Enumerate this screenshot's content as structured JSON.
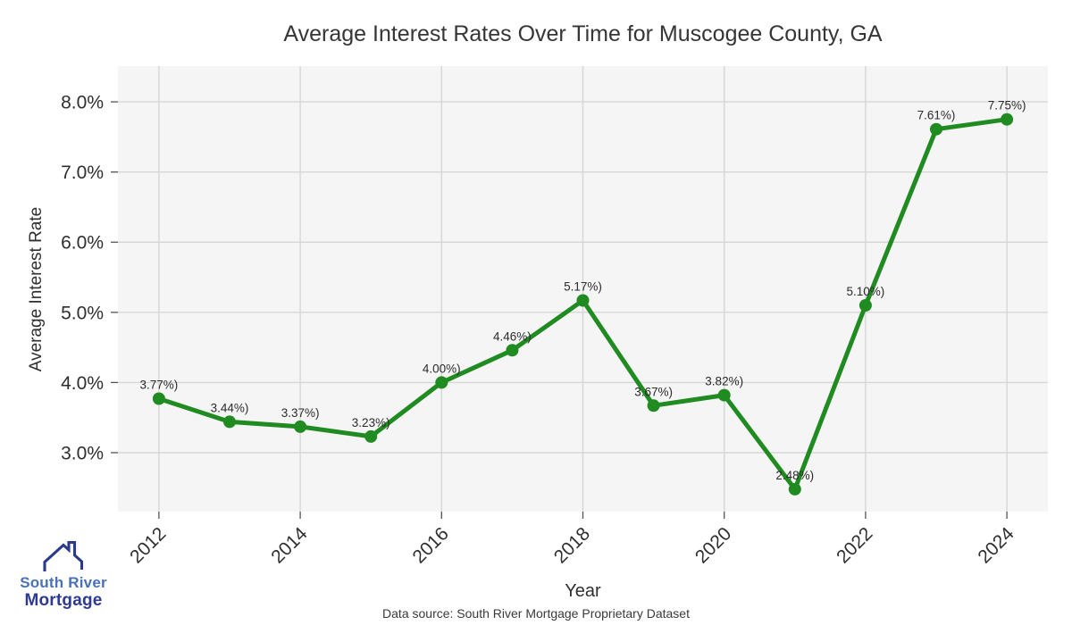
{
  "header": {
    "title": "Average Interest Rates Over Time for Muscogee County, GA"
  },
  "chart_data": {
    "type": "line",
    "title": "Average Interest Rates Over Time for Muscogee County, GA",
    "xlabel": "Year",
    "ylabel": "Average Interest Rate",
    "x": [
      2012,
      2013,
      2014,
      2015,
      2016,
      2017,
      2018,
      2019,
      2020,
      2021,
      2022,
      2023,
      2024
    ],
    "values": [
      3.77,
      3.44,
      3.37,
      3.23,
      4.0,
      4.46,
      5.17,
      3.67,
      3.82,
      2.48,
      5.1,
      7.61,
      7.75
    ],
    "point_labels": [
      "3.77%)",
      "3.44%)",
      "3.37%)",
      "3.23%)",
      "4.00%)",
      "4.46%)",
      "5.17%)",
      "3.67%)",
      "3.82%)",
      "2.48%)",
      "5.10%)",
      "7.61%)",
      "7.75%)"
    ],
    "x_ticks": [
      2012,
      2014,
      2016,
      2018,
      2020,
      2022,
      2024
    ],
    "y_ticks": [
      "3.0%",
      "4.0%",
      "5.0%",
      "6.0%",
      "7.0%",
      "8.0%"
    ],
    "y_tick_values": [
      3,
      4,
      5,
      6,
      7,
      8
    ],
    "xlim": [
      2011.42,
      2024.58
    ],
    "ylim": [
      2.16,
      8.51
    ],
    "grid": true,
    "legend": "none",
    "line_color": "#208b20",
    "marker_color": "#208b20",
    "plot_bg": "#f5f5f5",
    "grid_color": "#d6d6d6",
    "tick_color": "#2f2f2f",
    "label_color": "#2b2b2b"
  },
  "footer": {
    "source": "Data source: South River Mortgage Proprietary Dataset"
  },
  "logo": {
    "line1": "South River",
    "line2": "Mortgage",
    "color1": "#4a72b8",
    "color2": "#2e3b90",
    "roof_color": "#2c3a8c"
  }
}
